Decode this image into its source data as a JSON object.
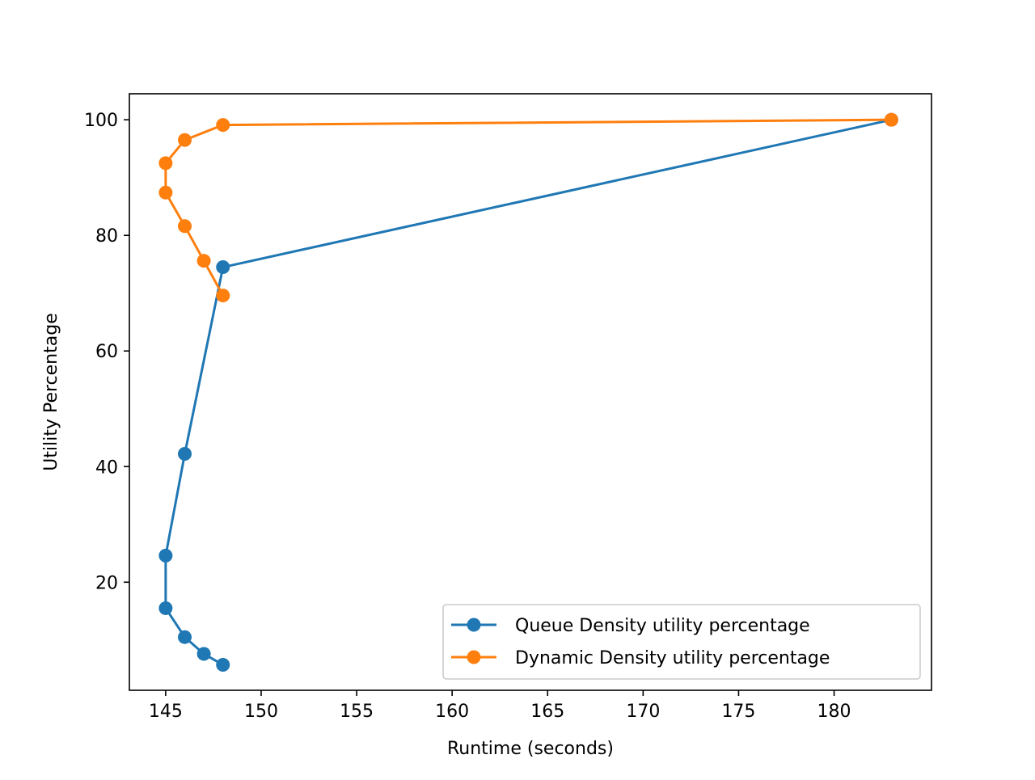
{
  "chart_data": {
    "type": "line",
    "title": "",
    "xlabel": "Runtime (seconds)",
    "ylabel": "Utility Percentage",
    "xlim": [
      143.1,
      185.1
    ],
    "ylim": [
      1.3,
      104.5
    ],
    "x_ticks": [
      145,
      150,
      155,
      160,
      165,
      170,
      175,
      180
    ],
    "y_ticks": [
      20,
      40,
      60,
      80,
      100
    ],
    "grid": false,
    "legend_position": "lower-right",
    "series": [
      {
        "name": "Queue Density utility percentage",
        "color": "#1f77b4",
        "marker": "circle",
        "points": [
          {
            "x": 183,
            "y": 100
          },
          {
            "x": 148,
            "y": 74.5
          },
          {
            "x": 146,
            "y": 42.2
          },
          {
            "x": 145,
            "y": 24.6
          },
          {
            "x": 145,
            "y": 15.5
          },
          {
            "x": 146,
            "y": 10.5
          },
          {
            "x": 147,
            "y": 7.6
          },
          {
            "x": 148,
            "y": 5.7
          }
        ]
      },
      {
        "name": "Dynamic Density utility percentage",
        "color": "#ff7f0e",
        "marker": "circle",
        "points": [
          {
            "x": 183,
            "y": 100
          },
          {
            "x": 148,
            "y": 99.1
          },
          {
            "x": 146,
            "y": 96.5
          },
          {
            "x": 145,
            "y": 92.5
          },
          {
            "x": 145,
            "y": 87.4
          },
          {
            "x": 146,
            "y": 81.6
          },
          {
            "x": 147,
            "y": 75.6
          },
          {
            "x": 148,
            "y": 69.6
          }
        ]
      }
    ]
  }
}
